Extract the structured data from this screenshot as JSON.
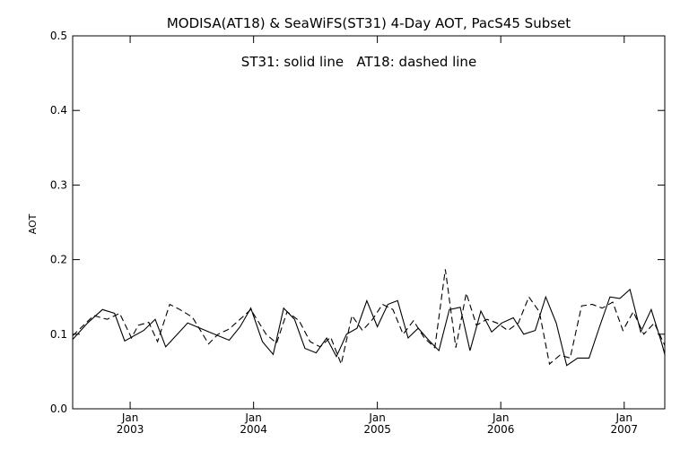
{
  "chart_data": {
    "type": "line",
    "title": "MODISA(AT18) & SeaWiFS(ST31) 4-Day AOT, PacS45 Subset",
    "annotation": "ST31: solid line   AT18: dashed line",
    "xlabel": "",
    "ylabel": "AOT",
    "xlim": [
      "2002-07-15",
      "2007-05-01"
    ],
    "ylim": [
      0.0,
      0.5
    ],
    "yticks": [
      0.0,
      0.1,
      0.2,
      0.3,
      0.4,
      0.5
    ],
    "ytick_labels": [
      "0.0",
      "0.1",
      "0.2",
      "0.3",
      "0.4",
      "0.5"
    ],
    "xticks": [
      {
        "date": "2003-01-01",
        "month": "Jan",
        "year": "2003"
      },
      {
        "date": "2004-01-01",
        "month": "Jan",
        "year": "2004"
      },
      {
        "date": "2005-01-01",
        "month": "Jan",
        "year": "2005"
      },
      {
        "date": "2006-01-01",
        "month": "Jan",
        "year": "2006"
      },
      {
        "date": "2007-01-01",
        "month": "Jan",
        "year": "2007"
      }
    ],
    "grid": false,
    "series": [
      {
        "name": "ST31",
        "style": "solid",
        "color": "#000000",
        "x": [
          "2002-07-15",
          "2002-08-28",
          "2002-10-11",
          "2002-11-16",
          "2002-12-16",
          "2003-02-10",
          "2003-03-16",
          "2003-04-16",
          "2003-06-20",
          "2003-08-22",
          "2003-10-21",
          "2003-11-22",
          "2003-12-24",
          "2004-01-27",
          "2004-02-28",
          "2004-03-30",
          "2004-05-01",
          "2004-06-01",
          "2004-07-04",
          "2004-08-04",
          "2004-09-02",
          "2004-10-02",
          "2004-11-02",
          "2004-12-01",
          "2005-01-01",
          "2005-02-01",
          "2005-03-02",
          "2005-04-02",
          "2005-05-02",
          "2005-06-02",
          "2005-07-02",
          "2005-08-02",
          "2005-09-03",
          "2005-10-02",
          "2005-11-03",
          "2005-12-05",
          "2006-01-04",
          "2006-02-07",
          "2006-03-10",
          "2006-04-13",
          "2006-05-14",
          "2006-06-14",
          "2006-07-15",
          "2006-08-16",
          "2006-09-19",
          "2006-10-20",
          "2006-11-20",
          "2006-12-19",
          "2007-01-18",
          "2007-02-19",
          "2007-03-22",
          "2007-04-22",
          "2007-05-01"
        ],
        "y": [
          0.093,
          0.115,
          0.133,
          0.128,
          0.091,
          0.105,
          0.12,
          0.083,
          0.115,
          0.103,
          0.092,
          0.11,
          0.135,
          0.09,
          0.073,
          0.135,
          0.12,
          0.081,
          0.075,
          0.095,
          0.07,
          0.1,
          0.108,
          0.145,
          0.11,
          0.14,
          0.145,
          0.095,
          0.108,
          0.092,
          0.078,
          0.133,
          0.136,
          0.078,
          0.131,
          0.103,
          0.115,
          0.122,
          0.1,
          0.105,
          0.15,
          0.115,
          0.058,
          0.068,
          0.068,
          0.11,
          0.15,
          0.148,
          0.16,
          0.103,
          0.133,
          0.088,
          0.073
        ]
      },
      {
        "name": "AT18",
        "style": "dashed",
        "color": "#000000",
        "x": [
          "2002-07-15",
          "2002-09-15",
          "2002-10-25",
          "2002-12-01",
          "2003-01-05",
          "2003-01-25",
          "2003-02-25",
          "2003-03-23",
          "2003-04-28",
          "2003-05-28",
          "2003-07-04",
          "2003-08-21",
          "2003-09-18",
          "2003-10-21",
          "2003-12-24",
          "2004-02-07",
          "2004-03-09",
          "2004-04-09",
          "2004-05-15",
          "2004-06-16",
          "2004-07-16",
          "2004-08-16",
          "2004-09-16",
          "2004-10-18",
          "2004-11-18",
          "2004-12-18",
          "2005-01-16",
          "2005-02-16",
          "2005-03-18",
          "2005-04-18",
          "2005-05-20",
          "2005-06-20",
          "2005-07-21",
          "2005-08-21",
          "2005-09-21",
          "2005-10-21",
          "2005-11-21",
          "2005-12-21",
          "2006-01-22",
          "2006-02-22",
          "2006-03-25",
          "2006-04-25",
          "2006-05-25",
          "2006-06-25",
          "2006-07-25",
          "2006-08-28",
          "2006-09-28",
          "2006-10-28",
          "2006-11-28",
          "2006-12-28",
          "2007-01-28",
          "2007-02-28",
          "2007-03-31",
          "2007-05-01"
        ],
        "y": [
          0.098,
          0.125,
          0.12,
          0.128,
          0.095,
          0.112,
          0.116,
          0.09,
          0.14,
          0.133,
          0.123,
          0.087,
          0.1,
          0.107,
          0.133,
          0.1,
          0.088,
          0.13,
          0.118,
          0.09,
          0.083,
          0.096,
          0.06,
          0.125,
          0.105,
          0.12,
          0.14,
          0.133,
          0.1,
          0.118,
          0.095,
          0.082,
          0.187,
          0.082,
          0.155,
          0.112,
          0.12,
          0.115,
          0.105,
          0.115,
          0.15,
          0.13,
          0.06,
          0.072,
          0.068,
          0.138,
          0.14,
          0.135,
          0.143,
          0.105,
          0.13,
          0.1,
          0.115,
          0.085
        ]
      }
    ]
  }
}
